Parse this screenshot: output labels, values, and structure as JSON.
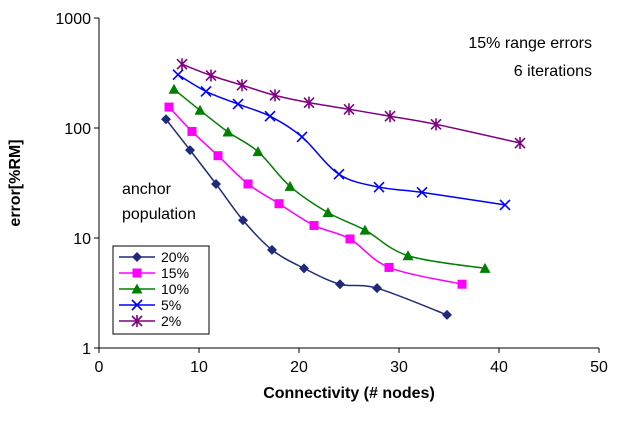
{
  "chart_data": {
    "type": "line",
    "title": "",
    "xlabel": "Connectivity (# nodes)",
    "ylabel": "error[%RM]",
    "xlim": [
      0,
      50
    ],
    "ylim": [
      1,
      1000
    ],
    "yscale": "log",
    "x_ticks": [
      "0",
      "10",
      "20",
      "30",
      "40",
      "50"
    ],
    "y_ticks": [
      "1",
      "10",
      "100",
      "1000"
    ],
    "grid": false,
    "annotations": [
      "15% range errors",
      "6 iterations",
      "anchor",
      "population"
    ],
    "legend_position": "lower-left",
    "series": [
      {
        "name": "20%",
        "color": "#1f2a7a",
        "marker": "diamond",
        "points": [
          [
            6.7,
            120
          ],
          [
            9.1,
            63
          ],
          [
            11.7,
            31
          ],
          [
            14.4,
            14.5
          ],
          [
            17.3,
            7.8
          ],
          [
            20.5,
            5.3
          ],
          [
            24.1,
            3.8
          ],
          [
            27.8,
            3.5
          ],
          [
            34.8,
            2.0
          ]
        ]
      },
      {
        "name": "15%",
        "color": "#ff00ff",
        "marker": "square",
        "points": [
          [
            7.0,
            155
          ],
          [
            9.3,
            93
          ],
          [
            11.9,
            56
          ],
          [
            14.9,
            31
          ],
          [
            18.0,
            20.5
          ],
          [
            21.5,
            13
          ],
          [
            25.1,
            9.8
          ],
          [
            29.0,
            5.4
          ],
          [
            36.3,
            3.8
          ]
        ]
      },
      {
        "name": "10%",
        "color": "#008000",
        "marker": "triangle",
        "points": [
          [
            7.5,
            225
          ],
          [
            10.1,
            145
          ],
          [
            12.9,
            92
          ],
          [
            15.9,
            61
          ],
          [
            19.1,
            29.5
          ],
          [
            22.9,
            17
          ],
          [
            26.6,
            11.8
          ],
          [
            30.9,
            6.9
          ],
          [
            38.6,
            5.3
          ]
        ]
      },
      {
        "name": "5%",
        "color": "#0000ff",
        "marker": "x",
        "points": [
          [
            7.9,
            305
          ],
          [
            10.7,
            215
          ],
          [
            13.9,
            165
          ],
          [
            17.1,
            128
          ],
          [
            20.3,
            83
          ],
          [
            24.0,
            38
          ],
          [
            28.0,
            29
          ],
          [
            32.3,
            26
          ],
          [
            40.6,
            20
          ]
        ]
      },
      {
        "name": "2%",
        "color": "#800080",
        "marker": "star",
        "points": [
          [
            8.3,
            380
          ],
          [
            11.2,
            300
          ],
          [
            14.3,
            245
          ],
          [
            17.6,
            198
          ],
          [
            21.0,
            170
          ],
          [
            25.0,
            148
          ],
          [
            29.1,
            128
          ],
          [
            33.7,
            108
          ],
          [
            42.1,
            73
          ]
        ]
      }
    ]
  }
}
